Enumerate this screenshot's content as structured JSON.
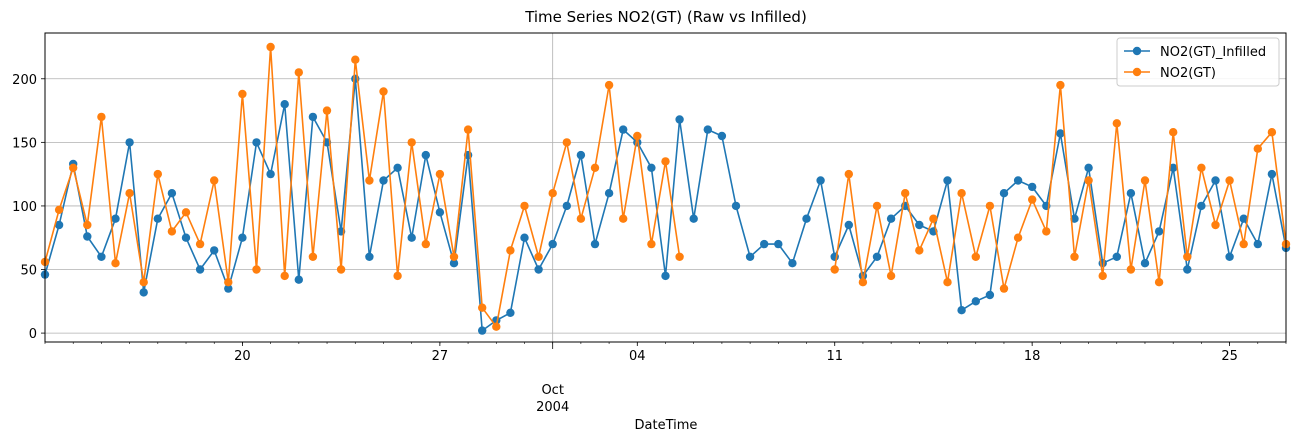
{
  "chart_data": {
    "type": "line",
    "title": "Time Series NO2(GT) (Raw vs Infilled)",
    "xlabel": "DateTime",
    "ylabel": "",
    "x_range": [
      "2004-09-13",
      "2004-10-27"
    ],
    "ylim": [
      -7,
      236
    ],
    "y_ticks": [
      0,
      50,
      100,
      150,
      200
    ],
    "x_ticks": [
      {
        "date": "2004-09-20",
        "label": "20"
      },
      {
        "date": "2004-09-27",
        "label": "27"
      },
      {
        "date": "2004-10-01",
        "label": "Oct"
      },
      {
        "date": "2004-10-04",
        "label": "04"
      },
      {
        "date": "2004-10-11",
        "label": "11"
      },
      {
        "date": "2004-10-18",
        "label": "18"
      },
      {
        "date": "2004-10-25",
        "label": "25"
      }
    ],
    "x_month_label": "Oct",
    "x_year_label": "2004",
    "grid": true,
    "legend_position": "top-right",
    "series": [
      {
        "name": "NO2(GT)_Infilled",
        "color": "#1f77b4",
        "marker": "circle",
        "points": [
          [
            "2004-09-13",
            46
          ],
          [
            "2004-09-13 12:00",
            85
          ],
          [
            "2004-09-14",
            133
          ],
          [
            "2004-09-14 12:00",
            76
          ],
          [
            "2004-09-15",
            60
          ],
          [
            "2004-09-15 12:00",
            90
          ],
          [
            "2004-09-16",
            150
          ],
          [
            "2004-09-16 12:00",
            32
          ],
          [
            "2004-09-17",
            90
          ],
          [
            "2004-09-17 12:00",
            110
          ],
          [
            "2004-09-18",
            75
          ],
          [
            "2004-09-18 12:00",
            50
          ],
          [
            "2004-09-19",
            65
          ],
          [
            "2004-09-19 12:00",
            35
          ],
          [
            "2004-09-20",
            75
          ],
          [
            "2004-09-20 12:00",
            150
          ],
          [
            "2004-09-21",
            125
          ],
          [
            "2004-09-21 12:00",
            180
          ],
          [
            "2004-09-22",
            42
          ],
          [
            "2004-09-22 12:00",
            170
          ],
          [
            "2004-09-23",
            150
          ],
          [
            "2004-09-23 12:00",
            80
          ],
          [
            "2004-09-24",
            200
          ],
          [
            "2004-09-24 12:00",
            60
          ],
          [
            "2004-09-25",
            120
          ],
          [
            "2004-09-25 12:00",
            130
          ],
          [
            "2004-09-26",
            75
          ],
          [
            "2004-09-26 12:00",
            140
          ],
          [
            "2004-09-27",
            95
          ],
          [
            "2004-09-27 12:00",
            55
          ],
          [
            "2004-09-28",
            140
          ],
          [
            "2004-09-28 12:00",
            2
          ],
          [
            "2004-09-29",
            10
          ],
          [
            "2004-09-29 12:00",
            16
          ],
          [
            "2004-09-30",
            75
          ],
          [
            "2004-09-30 12:00",
            50
          ],
          [
            "2004-10-01",
            70
          ],
          [
            "2004-10-01 12:00",
            100
          ],
          [
            "2004-10-02",
            140
          ],
          [
            "2004-10-02 12:00",
            70
          ],
          [
            "2004-10-03",
            110
          ],
          [
            "2004-10-03 12:00",
            160
          ],
          [
            "2004-10-04",
            150
          ],
          [
            "2004-10-04 12:00",
            130
          ],
          [
            "2004-10-05",
            45
          ],
          [
            "2004-10-05 12:00",
            168
          ],
          [
            "2004-10-06",
            90
          ],
          [
            "2004-10-06 12:00",
            160
          ],
          [
            "2004-10-07",
            155
          ],
          [
            "2004-10-07 12:00",
            100
          ],
          [
            "2004-10-08",
            60
          ],
          [
            "2004-10-08 12:00",
            70
          ],
          [
            "2004-10-09",
            70
          ],
          [
            "2004-10-09 12:00",
            55
          ],
          [
            "2004-10-10",
            90
          ],
          [
            "2004-10-10 12:00",
            120
          ],
          [
            "2004-10-11",
            60
          ],
          [
            "2004-10-11 12:00",
            85
          ],
          [
            "2004-10-12",
            45
          ],
          [
            "2004-10-12 12:00",
            60
          ],
          [
            "2004-10-13",
            90
          ],
          [
            "2004-10-13 12:00",
            100
          ],
          [
            "2004-10-14",
            85
          ],
          [
            "2004-10-14 12:00",
            80
          ],
          [
            "2004-10-15",
            120
          ],
          [
            "2004-10-15 12:00",
            18
          ],
          [
            "2004-10-16",
            25
          ],
          [
            "2004-10-16 12:00",
            30
          ],
          [
            "2004-10-17",
            110
          ],
          [
            "2004-10-17 12:00",
            120
          ],
          [
            "2004-10-18",
            115
          ],
          [
            "2004-10-18 12:00",
            100
          ],
          [
            "2004-10-19",
            157
          ],
          [
            "2004-10-19 12:00",
            90
          ],
          [
            "2004-10-20",
            130
          ],
          [
            "2004-10-20 12:00",
            55
          ],
          [
            "2004-10-21",
            60
          ],
          [
            "2004-10-21 12:00",
            110
          ],
          [
            "2004-10-22",
            55
          ],
          [
            "2004-10-22 12:00",
            80
          ],
          [
            "2004-10-23",
            130
          ],
          [
            "2004-10-23 12:00",
            50
          ],
          [
            "2004-10-24",
            100
          ],
          [
            "2004-10-24 12:00",
            120
          ],
          [
            "2004-10-25",
            60
          ],
          [
            "2004-10-25 12:00",
            90
          ],
          [
            "2004-10-26",
            70
          ],
          [
            "2004-10-26 12:00",
            125
          ],
          [
            "2004-10-27",
            67
          ]
        ]
      },
      {
        "name": "NO2(GT)",
        "color": "#ff7f0e",
        "marker": "circle",
        "points": [
          [
            "2004-09-13",
            56
          ],
          [
            "2004-09-13 12:00",
            97
          ],
          [
            "2004-09-14",
            130
          ],
          [
            "2004-09-14 12:00",
            85
          ],
          [
            "2004-09-15",
            170
          ],
          [
            "2004-09-15 12:00",
            55
          ],
          [
            "2004-09-16",
            110
          ],
          [
            "2004-09-16 12:00",
            40
          ],
          [
            "2004-09-17",
            125
          ],
          [
            "2004-09-17 12:00",
            80
          ],
          [
            "2004-09-18",
            95
          ],
          [
            "2004-09-18 12:00",
            70
          ],
          [
            "2004-09-19",
            120
          ],
          [
            "2004-09-19 12:00",
            40
          ],
          [
            "2004-09-20",
            188
          ],
          [
            "2004-09-20 12:00",
            50
          ],
          [
            "2004-09-21",
            225
          ],
          [
            "2004-09-21 12:00",
            45
          ],
          [
            "2004-09-22",
            205
          ],
          [
            "2004-09-22 12:00",
            60
          ],
          [
            "2004-09-23",
            175
          ],
          [
            "2004-09-23 12:00",
            50
          ],
          [
            "2004-09-24",
            215
          ],
          [
            "2004-09-24 12:00",
            120
          ],
          [
            "2004-09-25",
            190
          ],
          [
            "2004-09-25 12:00",
            45
          ],
          [
            "2004-09-26",
            150
          ],
          [
            "2004-09-26 12:00",
            70
          ],
          [
            "2004-09-27",
            125
          ],
          [
            "2004-09-27 12:00",
            60
          ],
          [
            "2004-09-28",
            160
          ],
          [
            "2004-09-28 12:00",
            20
          ],
          [
            "2004-09-29",
            5
          ],
          [
            "2004-09-29 12:00",
            65
          ],
          [
            "2004-09-30",
            100
          ],
          [
            "2004-09-30 12:00",
            60
          ],
          [
            "2004-10-01",
            110
          ],
          [
            "2004-10-01 12:00",
            150
          ],
          [
            "2004-10-02",
            90
          ],
          [
            "2004-10-02 12:00",
            130
          ],
          [
            "2004-10-03",
            195
          ],
          [
            "2004-10-03 12:00",
            90
          ],
          [
            "2004-10-04",
            155
          ],
          [
            "2004-10-04 12:00",
            70
          ],
          [
            "2004-10-05",
            135
          ],
          [
            "2004-10-05 12:00",
            60
          ],
          [
            "2004-10-11",
            50
          ],
          [
            "2004-10-11 12:00",
            125
          ],
          [
            "2004-10-12",
            40
          ],
          [
            "2004-10-12 12:00",
            100
          ],
          [
            "2004-10-13",
            45
          ],
          [
            "2004-10-13 12:00",
            110
          ],
          [
            "2004-10-14",
            65
          ],
          [
            "2004-10-14 12:00",
            90
          ],
          [
            "2004-10-15",
            40
          ],
          [
            "2004-10-15 12:00",
            110
          ],
          [
            "2004-10-16",
            60
          ],
          [
            "2004-10-16 12:00",
            100
          ],
          [
            "2004-10-17",
            35
          ],
          [
            "2004-10-17 12:00",
            75
          ],
          [
            "2004-10-18",
            105
          ],
          [
            "2004-10-18 12:00",
            80
          ],
          [
            "2004-10-19",
            195
          ],
          [
            "2004-10-19 12:00",
            60
          ],
          [
            "2004-10-20",
            120
          ],
          [
            "2004-10-20 12:00",
            45
          ],
          [
            "2004-10-21",
            165
          ],
          [
            "2004-10-21 12:00",
            50
          ],
          [
            "2004-10-22",
            120
          ],
          [
            "2004-10-22 12:00",
            40
          ],
          [
            "2004-10-23",
            158
          ],
          [
            "2004-10-23 12:00",
            60
          ],
          [
            "2004-10-24",
            130
          ],
          [
            "2004-10-24 12:00",
            85
          ],
          [
            "2004-10-25",
            120
          ],
          [
            "2004-10-25 12:00",
            70
          ],
          [
            "2004-10-26",
            145
          ],
          [
            "2004-10-26 12:00",
            158
          ],
          [
            "2004-10-27",
            70
          ]
        ]
      }
    ]
  }
}
